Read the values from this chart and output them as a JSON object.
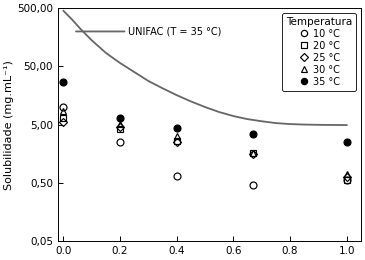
{
  "ylabel": "Solubilidade (mg.mL⁻¹)",
  "ylim_log": [
    0.05,
    500.0
  ],
  "xlim": [
    -0.02,
    1.05
  ],
  "yticks": [
    0.05,
    0.5,
    5.0,
    50.0,
    500.0
  ],
  "ytick_labels": [
    "0,05",
    "0,50",
    "5,00",
    "50,00",
    "500,00"
  ],
  "xticks": [
    0.0,
    0.2,
    0.4,
    0.6,
    0.8,
    1.0
  ],
  "xtick_labels": [
    "0.0",
    "0.2",
    "0.4",
    "0.6",
    "0.8",
    "1.0"
  ],
  "unifac_x": [
    0.0,
    0.03,
    0.06,
    0.1,
    0.15,
    0.2,
    0.25,
    0.3,
    0.35,
    0.4,
    0.45,
    0.5,
    0.55,
    0.6,
    0.65,
    0.7,
    0.75,
    0.8,
    0.85,
    0.9,
    0.95,
    1.0
  ],
  "unifac_y": [
    450,
    320,
    220,
    140,
    85,
    57,
    40,
    28,
    21,
    16,
    12.5,
    10.0,
    8.2,
    7.0,
    6.2,
    5.7,
    5.3,
    5.1,
    5.0,
    4.95,
    4.92,
    4.9
  ],
  "data_10C": [
    [
      0.0,
      10.0
    ],
    [
      0.2,
      2.5
    ],
    [
      0.4,
      0.65
    ],
    [
      0.67,
      0.46
    ],
    [
      1.0,
      0.55
    ]
  ],
  "data_20C": [
    [
      0.0,
      6.5
    ],
    [
      0.2,
      4.2
    ],
    [
      0.4,
      2.6
    ],
    [
      0.67,
      1.6
    ],
    [
      1.0,
      0.55
    ]
  ],
  "data_25C": [
    [
      0.0,
      5.5
    ],
    [
      0.2,
      4.6
    ],
    [
      0.4,
      2.5
    ],
    [
      0.67,
      1.55
    ],
    [
      1.0,
      0.63
    ]
  ],
  "data_30C": [
    [
      0.0,
      8.5
    ],
    [
      0.2,
      5.2
    ],
    [
      0.4,
      3.2
    ],
    [
      0.67,
      1.65
    ],
    [
      1.0,
      0.7
    ]
  ],
  "data_35C": [
    [
      0.0,
      27.0
    ],
    [
      0.2,
      6.5
    ],
    [
      0.4,
      4.4
    ],
    [
      0.67,
      3.5
    ],
    [
      1.0,
      2.5
    ]
  ],
  "legend_title": "Temperatura",
  "unifac_label": "UNIFAC (T = 35 °C)",
  "line_color": "#666666"
}
